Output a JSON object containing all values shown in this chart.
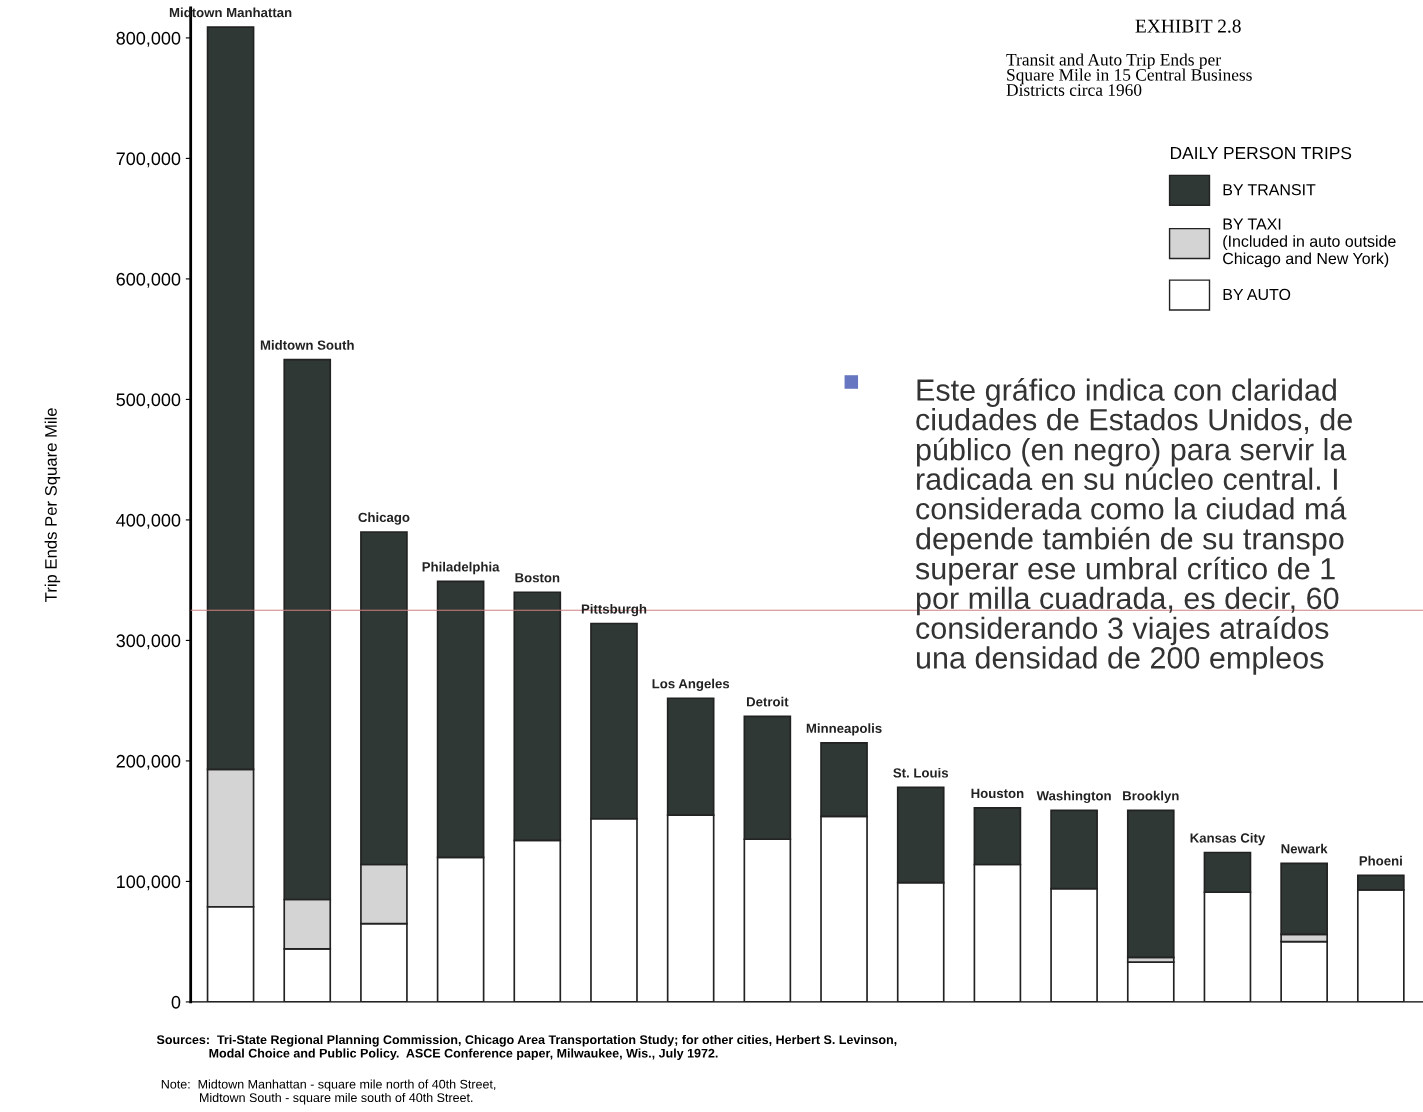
{
  "chart_data": {
    "type": "bar",
    "stacked": true,
    "title": "EXHIBIT 2.8",
    "subtitle": "Transit and Auto Trip Ends per\nSquare Mile in 15 Central Business\nDistricts circa 1960",
    "ylabel": "Trip Ends Per Square Mile",
    "legend_title": "DAILY PERSON TRIPS",
    "legend": "top right",
    "categories": [
      "Midtown Manhattan",
      "Midtown South",
      "Chicago",
      "Philadelphia",
      "Boston",
      "Pittsburgh",
      "Los Angeles",
      "Detroit",
      "Minneapolis",
      "St. Louis",
      "Houston",
      "Washington",
      "Brooklyn",
      "Kansas City",
      "Newark",
      "Phoeni"
    ],
    "series": [
      {
        "name": "BY AUTO",
        "color": "#ffffff",
        "values": [
          79000,
          44000,
          65000,
          120000,
          134000,
          152000,
          155000,
          135000,
          154000,
          99000,
          114000,
          94000,
          33000,
          91000,
          50000,
          93000
        ]
      },
      {
        "name": "BY TAXI\n(Included in auto outside\nChicago and New York)",
        "color": "#d4d4d4",
        "values": [
          114000,
          41000,
          49000,
          null,
          null,
          null,
          null,
          null,
          null,
          null,
          null,
          null,
          4000,
          null,
          6000,
          null
        ]
      },
      {
        "name": "BY TRANSIT",
        "color": "#2f3834",
        "values": [
          616000,
          448000,
          276000,
          229000,
          206000,
          162000,
          97000,
          102000,
          61000,
          79000,
          47000,
          65000,
          122000,
          33000,
          59000,
          12000
        ]
      }
    ],
    "ylim": [
      0,
      825000
    ],
    "yticks": [
      0,
      {
        "value": 100000,
        "label": "100,000"
      },
      {
        "value": 200000,
        "label": "200,000"
      },
      {
        "value": 300000,
        "label": "300,000"
      },
      {
        "value": 400000,
        "label": "400,000"
      },
      {
        "value": 500000,
        "label": "500,000"
      },
      {
        "value": 600000,
        "label": "600,000"
      },
      {
        "value": 700000,
        "label": "700,000"
      },
      {
        "value": 800000,
        "label": "800,000"
      }
    ],
    "ref_lines": [
      {
        "axis": "y",
        "value": 325000,
        "color": "#d08080"
      }
    ],
    "annotations": [
      "Sources:  Tri-State Regional Planning Commission, Chicago Area Transportation Study; for other cities, Herbert S. Levinson,\n               Modal Choice and Public Policy.  ASCE Conference paper, Milwaukee, Wis., July 1972.",
      "Note:  Midtown Manhattan - square mile north of 40th Street,\n           Midtown South - square mile south of 40th Street.",
      "Este gráfico indica con claridad\nciudades de Estados Unidos, de\npúblico (en negro) para servir la\nradicada en su núcleo central. I\nconsiderada como la ciudad má\ndepende también de su transpo\nsuperar ese umbral crítico de 1\npor milla cuadrada, es decir, 60\nconsiderando 3 viajes atraídos\nuna densidad de 200 empleos"
    ]
  }
}
